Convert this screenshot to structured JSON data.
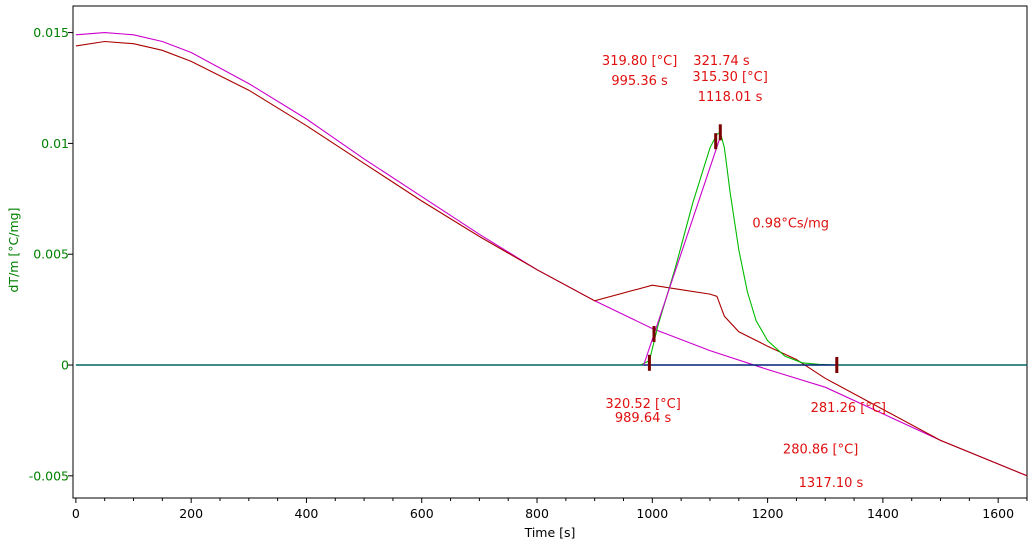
{
  "chart_data": {
    "type": "line",
    "title": "",
    "xlabel": "Time [s]",
    "ylabel": "dT/m  [°C/mg]",
    "xlim": [
      -5,
      1650
    ],
    "ylim": [
      -0.006,
      0.0162
    ],
    "xticks": [
      0,
      200,
      400,
      600,
      800,
      1000,
      1200,
      1400,
      1600
    ],
    "yticks": [
      -0.005,
      0,
      0.005,
      0.01,
      0.015
    ],
    "xtick_labels": [
      "0",
      "200",
      "400",
      "600",
      "800",
      "1000",
      "1200",
      "1400",
      "1600"
    ],
    "ytick_labels": [
      "-0.005",
      "0",
      "0.005",
      "0.01",
      "0.015"
    ],
    "grid": false,
    "legend": "none",
    "colors": {
      "axis_text_y": "#008000",
      "axis_text_x": "#000000",
      "annotation": "#e01010",
      "magenta": "#cc00cc",
      "darkred": "#aa0000",
      "green": "#00bb00",
      "teal": "#006666",
      "navy": "#000080",
      "marker": "#7a0000"
    },
    "series": [
      {
        "color": "magenta",
        "x": [
          0,
          50,
          100,
          150,
          200,
          300,
          400,
          500,
          600,
          700,
          800,
          900,
          1000,
          1100,
          1200,
          1300,
          1400,
          1500,
          1650
        ],
        "y": [
          0.0149,
          0.015,
          0.0149,
          0.0146,
          0.0141,
          0.0127,
          0.0111,
          0.0093,
          0.0076,
          0.0059,
          0.0043,
          0.0029,
          0.00165,
          0.00065,
          -0.0002,
          -0.001,
          -0.0022,
          -0.0034,
          -0.005
        ]
      },
      {
        "color": "darkred",
        "x": [
          0,
          50,
          100,
          150,
          200,
          300,
          400,
          500,
          600,
          700,
          800,
          900,
          1000,
          1050,
          1100,
          1112,
          1125,
          1150,
          1200,
          1250,
          1300,
          1400,
          1500,
          1650
        ],
        "y": [
          0.0144,
          0.0146,
          0.0145,
          0.0142,
          0.0137,
          0.0124,
          0.0108,
          0.0091,
          0.0074,
          0.0058,
          0.0043,
          0.0029,
          0.0036,
          0.0034,
          0.0032,
          0.0031,
          0.0022,
          0.0015,
          0.00085,
          0.00025,
          -0.0006,
          -0.002,
          -0.0034,
          -0.005
        ]
      },
      {
        "color": "green",
        "x": [
          980,
          995,
          1010,
          1040,
          1070,
          1100,
          1112,
          1118,
          1125,
          1135,
          1150,
          1165,
          1180,
          1200,
          1230,
          1260,
          1290,
          1320,
          1650
        ],
        "y": [
          0,
          0.0002,
          0.0018,
          0.0044,
          0.0073,
          0.0098,
          0.0104,
          0.0105,
          0.0098,
          0.0078,
          0.0052,
          0.0033,
          0.002,
          0.0011,
          0.0004,
          0.0001,
          3e-05,
          0,
          0
        ]
      },
      {
        "color": "teal",
        "x": [
          0,
          1650
        ],
        "y": [
          0,
          0
        ]
      },
      {
        "color": "navy",
        "x": [
          985,
          1320
        ],
        "y": [
          0,
          0
        ]
      },
      {
        "color": "magenta",
        "x": [
          985,
          1118
        ],
        "y": [
          0,
          0.0103
        ]
      }
    ],
    "markers": [
      {
        "x": 995,
        "y": 0.0001
      },
      {
        "x": 1003,
        "y": 0.0014
      },
      {
        "x": 1110,
        "y": 0.0101
      },
      {
        "x": 1118,
        "y": 0.0105
      },
      {
        "x": 1320,
        "y": 0
      }
    ],
    "annotations": [
      {
        "text": "319.80 [°C]",
        "x": 978,
        "y": 0.01354
      },
      {
        "text": "995.36 s",
        "x": 978,
        "y": 0.01264
      },
      {
        "text": "321.74 s",
        "x": 1120,
        "y": 0.01354
      },
      {
        "text": "315.30 [°C]",
        "x": 1135,
        "y": 0.01281
      },
      {
        "text": "1118.01 s",
        "x": 1135,
        "y": 0.01192
      },
      {
        "text": "0.98°Cs/mg",
        "x": 1240,
        "y": 0.0062
      },
      {
        "text": "320.52 [°C]",
        "x": 984,
        "y": -0.00195
      },
      {
        "text": "989.64 s",
        "x": 984,
        "y": -0.00258
      },
      {
        "text": "281.26 [°C]",
        "x": 1340,
        "y": -0.00213
      },
      {
        "text": "280.86 [°C]",
        "x": 1292,
        "y": -0.00399
      },
      {
        "text": "1317.10 s",
        "x": 1310,
        "y": -0.0055
      }
    ]
  }
}
